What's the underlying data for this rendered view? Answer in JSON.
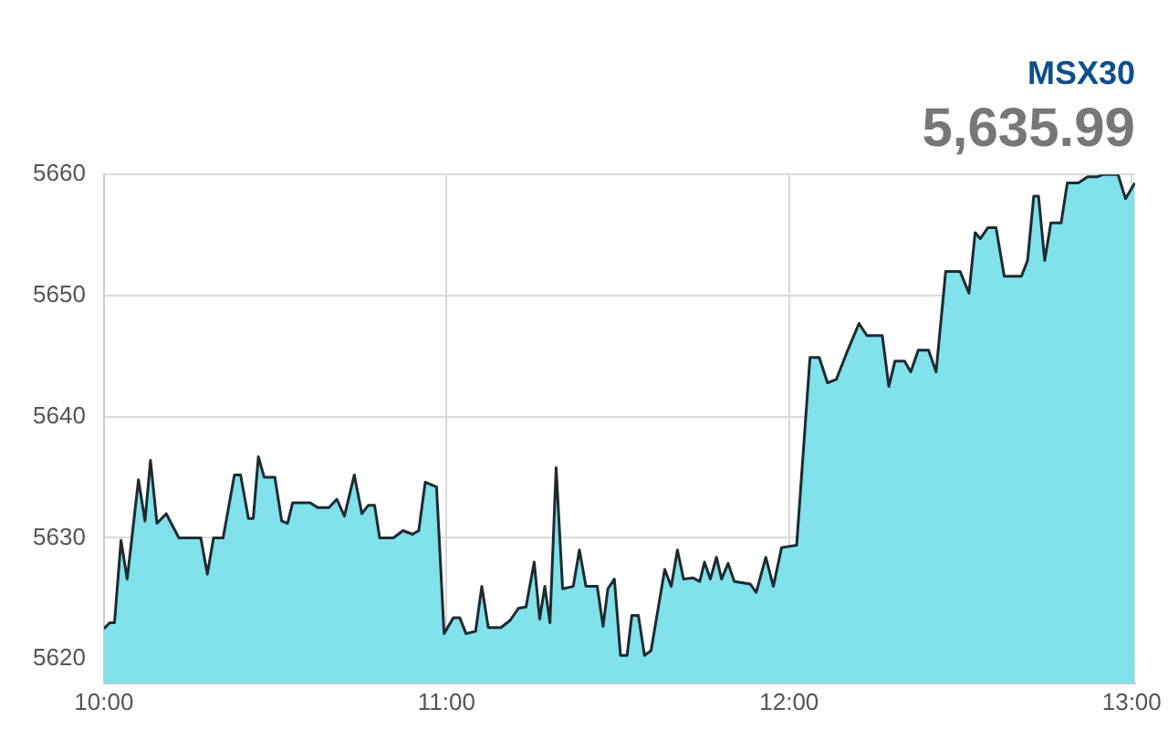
{
  "chart_data": {
    "type": "area",
    "title": "MSX30",
    "subtitle": "5,635.99",
    "legend": false,
    "grid": true,
    "marker": "none",
    "xlim": [
      10,
      13.01
    ],
    "ylim": [
      5618,
      5660
    ],
    "xticks": [
      {
        "value": 10,
        "label": "10:00"
      },
      {
        "value": 11,
        "label": "11:00"
      },
      {
        "value": 12,
        "label": "12:00"
      },
      {
        "value": 13,
        "label": "13:00"
      }
    ],
    "yticks": [
      5620,
      5630,
      5640,
      5650,
      5660
    ],
    "series": [
      {
        "color": "#80e1eb",
        "x": [
          10.0,
          10.017,
          10.031,
          10.05,
          10.068,
          10.101,
          10.12,
          10.136,
          10.155,
          10.182,
          10.219,
          10.283,
          10.302,
          10.32,
          10.348,
          10.381,
          10.399,
          10.422,
          10.436,
          10.451,
          10.468,
          10.499,
          10.519,
          10.536,
          10.551,
          10.602,
          10.624,
          10.657,
          10.68,
          10.702,
          10.731,
          10.753,
          10.772,
          10.79,
          10.805,
          10.845,
          10.873,
          10.901,
          10.919,
          10.938,
          10.971,
          10.993,
          11.02,
          11.039,
          11.057,
          11.085,
          11.103,
          11.122,
          11.159,
          11.186,
          11.21,
          11.232,
          11.256,
          11.272,
          11.287,
          11.302,
          11.32,
          11.339,
          11.37,
          11.388,
          11.407,
          11.44,
          11.457,
          11.471,
          11.49,
          11.508,
          11.527,
          11.541,
          11.56,
          11.578,
          11.597,
          11.637,
          11.656,
          11.674,
          11.692,
          11.72,
          11.739,
          11.753,
          11.77,
          11.788,
          11.803,
          11.822,
          11.84,
          11.886,
          11.904,
          11.932,
          11.954,
          11.978,
          12.022,
          12.061,
          12.088,
          12.112,
          12.138,
          12.167,
          12.204,
          12.227,
          12.272,
          12.291,
          12.309,
          12.337,
          12.355,
          12.377,
          12.407,
          12.429,
          12.457,
          12.499,
          12.525,
          12.543,
          12.558,
          12.58,
          12.604,
          12.628,
          12.678,
          12.696,
          12.714,
          12.728,
          12.746,
          12.764,
          12.794,
          12.812,
          12.844,
          12.871,
          12.899,
          12.917,
          12.96,
          12.982,
          13.009
        ],
        "values": [
          5622.5,
          5623,
          5623,
          5629.8,
          5626.6,
          5634.8,
          5631.4,
          5636.4,
          5631.2,
          5632,
          5630,
          5630,
          5627,
          5630,
          5630,
          5635.2,
          5635.2,
          5631.6,
          5631.6,
          5636.7,
          5635,
          5635,
          5631.4,
          5631.2,
          5632.9,
          5632.9,
          5632.5,
          5632.5,
          5633.2,
          5631.8,
          5635.2,
          5632,
          5632.7,
          5632.7,
          5630,
          5630,
          5630.6,
          5630.3,
          5630.6,
          5634.6,
          5634.2,
          5622.1,
          5623.4,
          5623.4,
          5622.1,
          5622.3,
          5626,
          5622.6,
          5622.6,
          5623.2,
          5624.2,
          5624.3,
          5628,
          5623.3,
          5626,
          5623,
          5635.8,
          5625.8,
          5626,
          5629,
          5626,
          5626,
          5622.7,
          5625.8,
          5626.6,
          5620.3,
          5620.3,
          5623.6,
          5623.6,
          5620.3,
          5620.7,
          5627.4,
          5626,
          5629,
          5626.6,
          5626.7,
          5626.4,
          5628,
          5626.6,
          5628.4,
          5626.6,
          5627.9,
          5626.4,
          5626.2,
          5625.5,
          5628.4,
          5626,
          5629.2,
          5629.4,
          5644.9,
          5644.9,
          5642.8,
          5643.1,
          5645.2,
          5647.7,
          5646.7,
          5646.7,
          5642.5,
          5644.6,
          5644.6,
          5643.7,
          5645.5,
          5645.5,
          5643.7,
          5652,
          5652,
          5650.2,
          5655.2,
          5654.7,
          5655.6,
          5655.6,
          5651.6,
          5651.6,
          5652.9,
          5658.2,
          5658.2,
          5652.9,
          5656,
          5656,
          5659.3,
          5659.3,
          5659.8,
          5659.8,
          5660,
          5660,
          5658,
          5659.3
        ]
      }
    ]
  }
}
